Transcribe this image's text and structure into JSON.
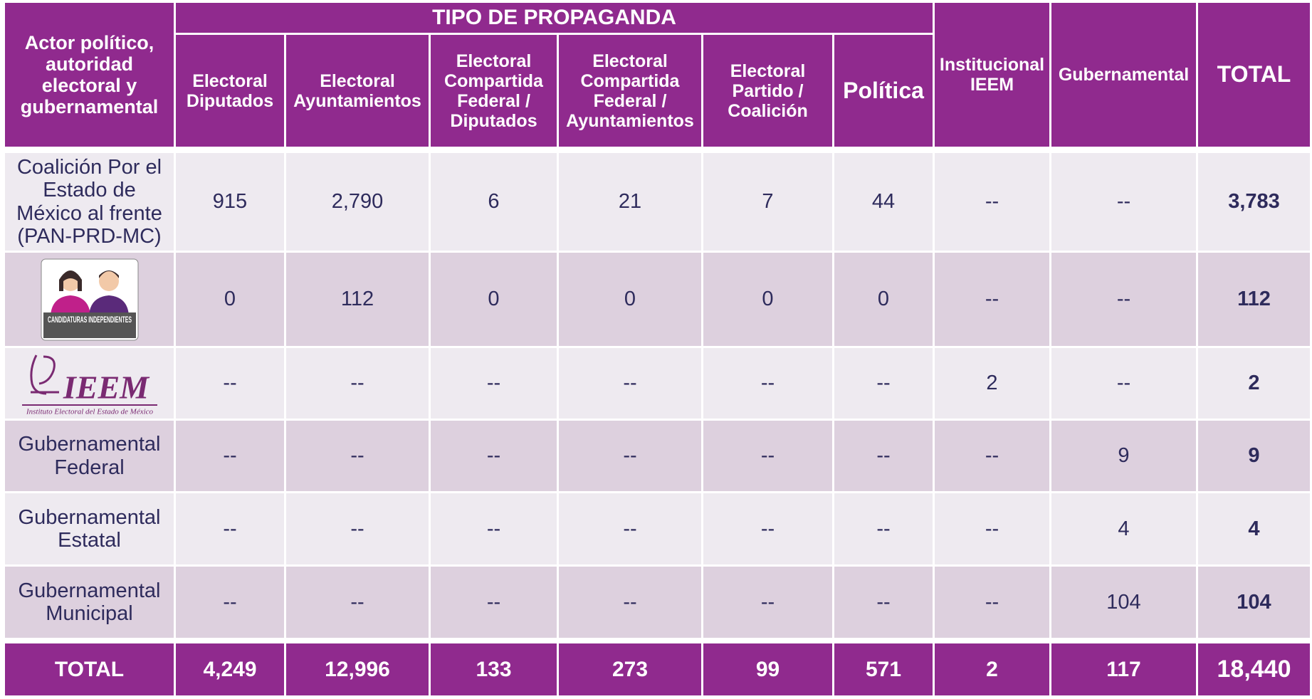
{
  "table": {
    "header": {
      "actor": "Actor político, autoridad electoral y gubernamental",
      "group": "TIPO DE PROPAGANDA",
      "group_columns": [
        "Electoral Diputados",
        "Electoral Ayuntamientos",
        "Electoral Compartida Federal / Diputados",
        "Electoral Compartida Federal / Ayuntamientos",
        "Electoral Partido / Coalición",
        "Política"
      ],
      "other_columns": [
        "Institucional IEEM",
        "Gubernamental",
        "TOTAL"
      ]
    },
    "rows": [
      {
        "actor": "Coalición Por el Estado de México al frente (PAN-PRD-MC)",
        "cells": [
          "915",
          "2,790",
          "6",
          "21",
          "7",
          "44",
          "--",
          "--",
          "3,783"
        ]
      },
      {
        "logo_text": "CANDIDATURAS INDEPENDIENTES",
        "cells": [
          "0",
          "112",
          "0",
          "0",
          "0",
          "0",
          "--",
          "--",
          "112"
        ]
      },
      {
        "logo_mark": "IEEM",
        "logo_caption": "Instituto Electoral del Estado de México",
        "cells": [
          "--",
          "--",
          "--",
          "--",
          "--",
          "--",
          "2",
          "--",
          "2"
        ]
      },
      {
        "actor": "Gubernamental Federal",
        "cells": [
          "--",
          "--",
          "--",
          "--",
          "--",
          "--",
          "--",
          "9",
          "9"
        ]
      },
      {
        "actor": "Gubernamental Estatal",
        "cells": [
          "--",
          "--",
          "--",
          "--",
          "--",
          "--",
          "--",
          "4",
          "4"
        ]
      },
      {
        "actor": "Gubernamental Municipal",
        "cells": [
          "--",
          "--",
          "--",
          "--",
          "--",
          "--",
          "--",
          "104",
          "104"
        ]
      }
    ],
    "total_row": {
      "label": "TOTAL",
      "cells": [
        "4,249",
        "12,996",
        "133",
        "273",
        "99",
        "571",
        "2",
        "117",
        "18,440"
      ]
    }
  }
}
